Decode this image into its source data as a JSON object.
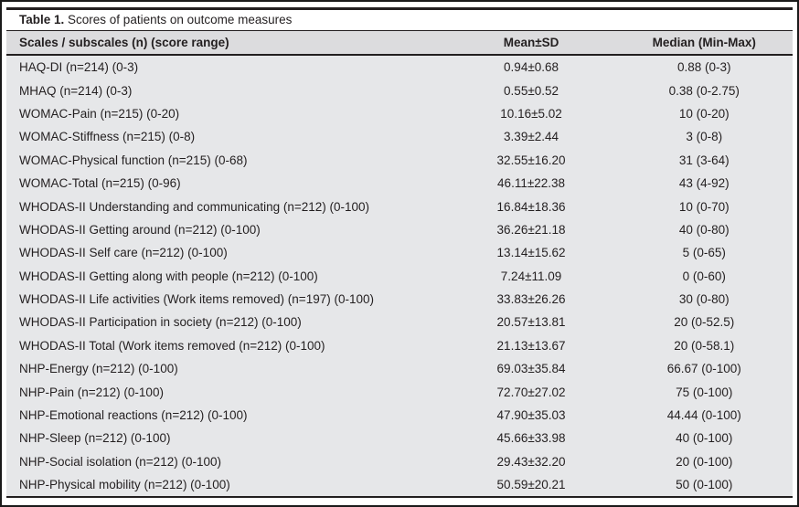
{
  "table": {
    "caption": {
      "label": "Table 1.",
      "text": " Scores of patients on outcome measures"
    },
    "columns": {
      "scale": "Scales / subscales (n) (score range)",
      "mean_sd": "Mean±SD",
      "median": "Median (Min-Max)"
    },
    "rows": [
      {
        "scale": "HAQ-DI (n=214) (0-3)",
        "mean_sd": "0.94±0.68",
        "median": "0.88 (0-3)"
      },
      {
        "scale": "MHAQ (n=214) (0-3)",
        "mean_sd": "0.55±0.52",
        "median": "0.38 (0-2.75)"
      },
      {
        "scale": "WOMAC-Pain (n=215) (0-20)",
        "mean_sd": "10.16±5.02",
        "median": "10 (0-20)"
      },
      {
        "scale": "WOMAC-Stiffness (n=215) (0-8)",
        "mean_sd": "3.39±2.44",
        "median": "3 (0-8)"
      },
      {
        "scale": "WOMAC-Physical function (n=215) (0-68)",
        "mean_sd": "32.55±16.20",
        "median": "31 (3-64)"
      },
      {
        "scale": "WOMAC-Total (n=215) (0-96)",
        "mean_sd": "46.11±22.38",
        "median": "43 (4-92)"
      },
      {
        "scale": "WHODAS-II Understanding and communicating (n=212) (0-100)",
        "mean_sd": "16.84±18.36",
        "median": "10 (0-70)"
      },
      {
        "scale": "WHODAS-II Getting around (n=212) (0-100)",
        "mean_sd": "36.26±21.18",
        "median": "40 (0-80)"
      },
      {
        "scale": "WHODAS-II Self care (n=212) (0-100)",
        "mean_sd": "13.14±15.62",
        "median": "5 (0-65)"
      },
      {
        "scale": "WHODAS-II Getting along with people (n=212) (0-100)",
        "mean_sd": "7.24±11.09",
        "median": "0 (0-60)"
      },
      {
        "scale": "WHODAS-II Life activities (Work items removed) (n=197) (0-100)",
        "mean_sd": "33.83±26.26",
        "median": "30 (0-80)"
      },
      {
        "scale": "WHODAS-II Participation in society (n=212) (0-100)",
        "mean_sd": "20.57±13.81",
        "median": "20 (0-52.5)"
      },
      {
        "scale": "WHODAS-II Total (Work items removed (n=212) (0-100)",
        "mean_sd": "21.13±13.67",
        "median": "20 (0-58.1)"
      },
      {
        "scale": "NHP-Energy (n=212) (0-100)",
        "mean_sd": "69.03±35.84",
        "median": "66.67 (0-100)"
      },
      {
        "scale": "NHP-Pain (n=212) (0-100)",
        "mean_sd": "72.70±27.02",
        "median": "75 (0-100)"
      },
      {
        "scale": "NHP-Emotional reactions (n=212) (0-100)",
        "mean_sd": "47.90±35.03",
        "median": "44.44 (0-100)"
      },
      {
        "scale": "NHP-Sleep (n=212) (0-100)",
        "mean_sd": "45.66±33.98",
        "median": "40 (0-100)"
      },
      {
        "scale": "NHP-Social isolation (n=212) (0-100)",
        "mean_sd": "29.43±32.20",
        "median": "20 (0-100)"
      },
      {
        "scale": "NHP-Physical mobility (n=212) (0-100)",
        "mean_sd": "50.59±20.21",
        "median": "50 (0-100)"
      }
    ],
    "colors": {
      "header_bg": "#dcdcde",
      "body_bg": "#e6e7e9",
      "rule": "#231f20",
      "frame_border": "#1a1a1a",
      "text": "#231f20"
    }
  }
}
